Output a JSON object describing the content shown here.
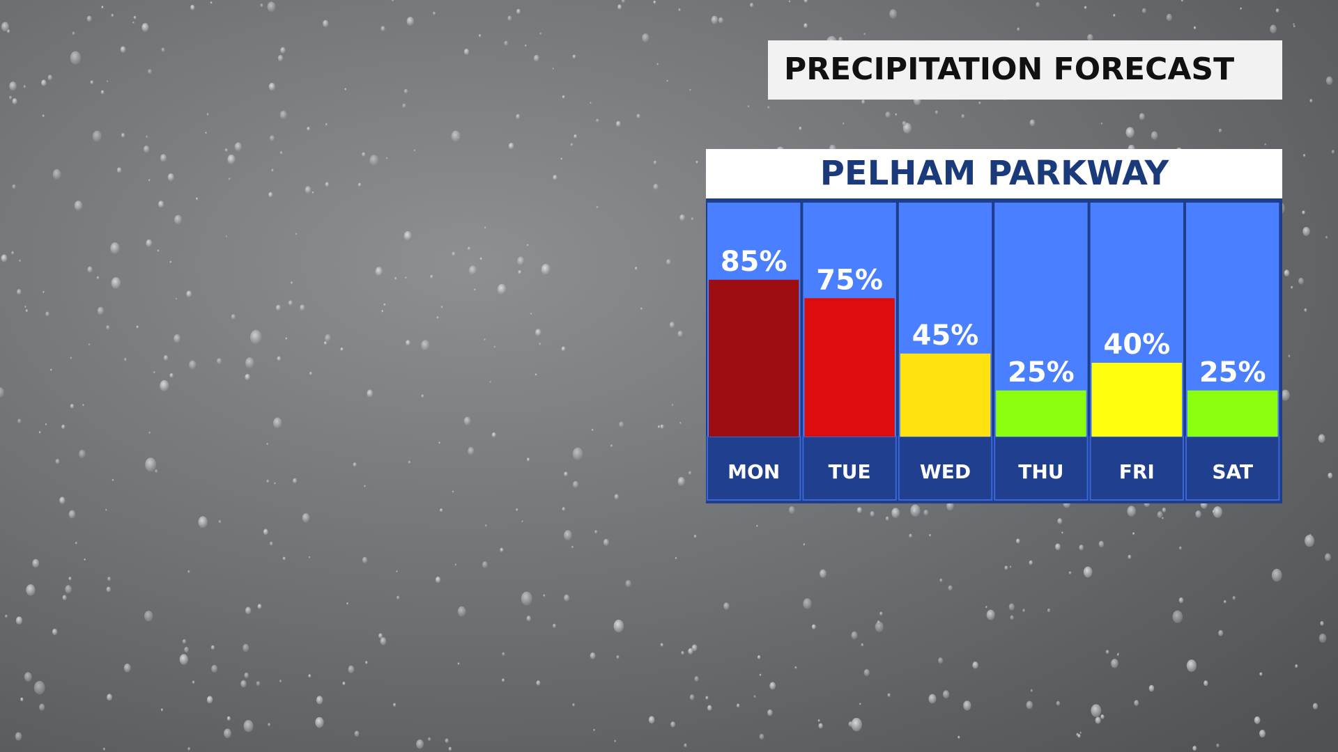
{
  "chart_data": {
    "type": "bar",
    "title": "PRECIPITATION FORECAST",
    "subtitle": "PELHAM PARKWAY",
    "categories": [
      "MON",
      "TUE",
      "WED",
      "THU",
      "FRI",
      "SAT"
    ],
    "values": [
      85,
      75,
      45,
      25,
      40,
      25
    ],
    "value_labels": [
      "85%",
      "75%",
      "45%",
      "25%",
      "40%",
      "25%"
    ],
    "colors": [
      "#9c0e12",
      "#dd0d0d",
      "#ffe20f",
      "#8cff0f",
      "#ffff0f",
      "#8cff0f"
    ]
  }
}
